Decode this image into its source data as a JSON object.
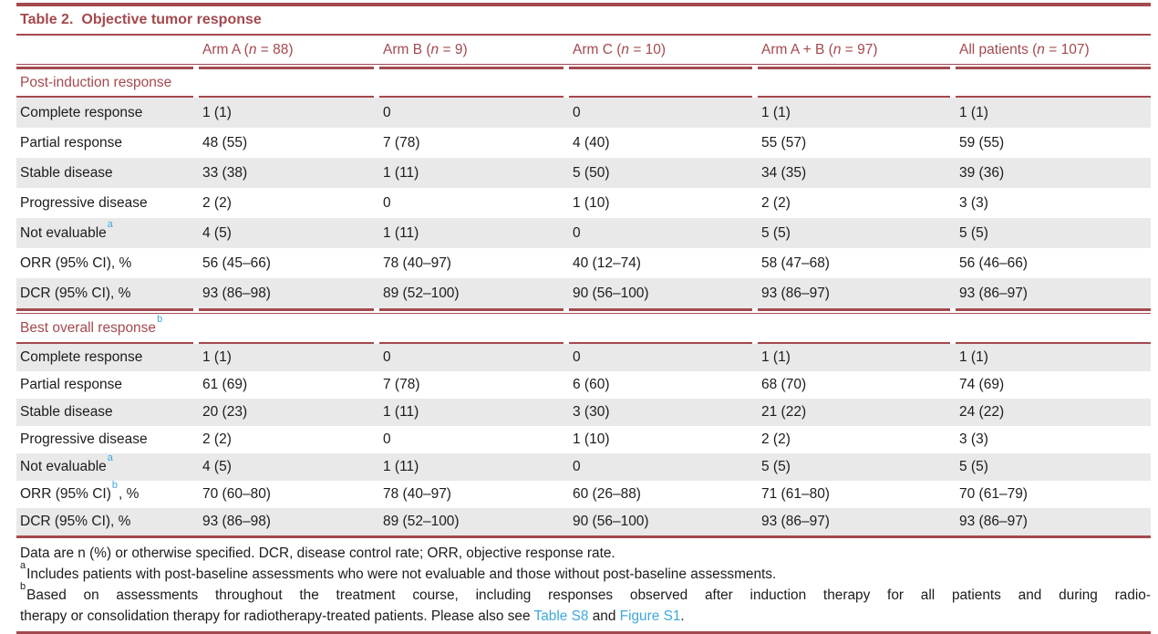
{
  "colors": {
    "accent_maroon": "#A4494E",
    "row_shade": "#E9E9E9",
    "link_blue": "#3FA8DC",
    "body_text": "#1C1C1E"
  },
  "table": {
    "title_label": "Table 2.",
    "title_text": "Objective tumor response",
    "columns": [
      {
        "pre": "Arm A (",
        "n": "n",
        "post": " = 88)"
      },
      {
        "pre": "Arm B (",
        "n": "n",
        "post": " = 9)"
      },
      {
        "pre": "Arm C (",
        "n": "n",
        "post": " = 10)"
      },
      {
        "pre": "Arm A + B (",
        "n": "n",
        "post": " = 97)"
      },
      {
        "pre": "All patients (",
        "n": "n",
        "post": " = 107)"
      }
    ],
    "sections": [
      {
        "header": {
          "text": "Post-induction response",
          "sup": ""
        },
        "rows": [
          {
            "label": {
              "text": "Complete response",
              "sup": "",
              "suffix": ""
            },
            "values": [
              "1 (1)",
              "0",
              "0",
              "1 (1)",
              "1 (1)"
            ]
          },
          {
            "label": {
              "text": "Partial response",
              "sup": "",
              "suffix": ""
            },
            "values": [
              "48 (55)",
              "7 (78)",
              "4 (40)",
              "55 (57)",
              "59 (55)"
            ]
          },
          {
            "label": {
              "text": "Stable disease",
              "sup": "",
              "suffix": ""
            },
            "values": [
              "33 (38)",
              "1 (11)",
              "5 (50)",
              "34 (35)",
              "39 (36)"
            ]
          },
          {
            "label": {
              "text": "Progressive disease",
              "sup": "",
              "suffix": ""
            },
            "values": [
              "2 (2)",
              "0",
              "1 (10)",
              "2 (2)",
              "3 (3)"
            ]
          },
          {
            "label": {
              "text": "Not evaluable",
              "sup": "a",
              "suffix": ""
            },
            "values": [
              "4 (5)",
              "1 (11)",
              "0",
              "5 (5)",
              "5 (5)"
            ]
          },
          {
            "label": {
              "text": "ORR (95% CI), %",
              "sup": "",
              "suffix": ""
            },
            "values": [
              "56 (45–66)",
              "78 (40–97)",
              "40 (12–74)",
              "58 (47–68)",
              "56 (46–66)"
            ]
          },
          {
            "label": {
              "text": "DCR (95% CI), %",
              "sup": "",
              "suffix": ""
            },
            "values": [
              "93 (86–98)",
              "89 (52–100)",
              "90 (56–100)",
              "93 (86–97)",
              "93 (86–97)"
            ]
          }
        ]
      },
      {
        "header": {
          "text": "Best overall response",
          "sup": "b"
        },
        "rows": [
          {
            "label": {
              "text": "Complete response",
              "sup": "",
              "suffix": ""
            },
            "values": [
              "1 (1)",
              "0",
              "0",
              "1 (1)",
              "1 (1)"
            ]
          },
          {
            "label": {
              "text": "Partial response",
              "sup": "",
              "suffix": ""
            },
            "values": [
              "61 (69)",
              "7 (78)",
              "6 (60)",
              "68 (70)",
              "74 (69)"
            ]
          },
          {
            "label": {
              "text": "Stable disease",
              "sup": "",
              "suffix": ""
            },
            "values": [
              "20 (23)",
              "1 (11)",
              "3 (30)",
              "21 (22)",
              "24 (22)"
            ]
          },
          {
            "label": {
              "text": "Progressive disease",
              "sup": "",
              "suffix": ""
            },
            "values": [
              "2 (2)",
              "0",
              "1 (10)",
              "2 (2)",
              "3 (3)"
            ]
          },
          {
            "label": {
              "text": "Not evaluable",
              "sup": "a",
              "suffix": ""
            },
            "values": [
              "4 (5)",
              "1 (11)",
              "0",
              "5 (5)",
              "5 (5)"
            ]
          },
          {
            "label": {
              "text": "ORR (95% CI)",
              "sup": "b",
              "suffix": ", %"
            },
            "values": [
              "70 (60–80)",
              "78 (40–97)",
              "60 (26–88)",
              "71 (61–80)",
              "70 (61–79)"
            ]
          },
          {
            "label": {
              "text": "DCR (95% CI), %",
              "sup": "",
              "suffix": ""
            },
            "values": [
              "93 (86–98)",
              "89 (52–100)",
              "90 (56–100)",
              "93 (86–97)",
              "93 (86–97)"
            ]
          }
        ]
      }
    ],
    "footnotes": {
      "line1": "Data are n (%) or otherwise specified. DCR, disease control rate; ORR, objective response rate.",
      "line2_sup": "a",
      "line2_text": "Includes patients with post-baseline assessments who were not evaluable and those without post-baseline assessments.",
      "line3_sup": "b",
      "line3_text1": "Based on assessments throughout the treatment course, including responses observed after induction therapy for all patients and during radio-",
      "line3_text2": "therapy or consolidation therapy for radiotherapy-treated patients. Please also see ",
      "line3_link1": "Table S8",
      "line3_text3": " and ",
      "line3_link2": "Figure S1",
      "line3_text4": "."
    }
  }
}
